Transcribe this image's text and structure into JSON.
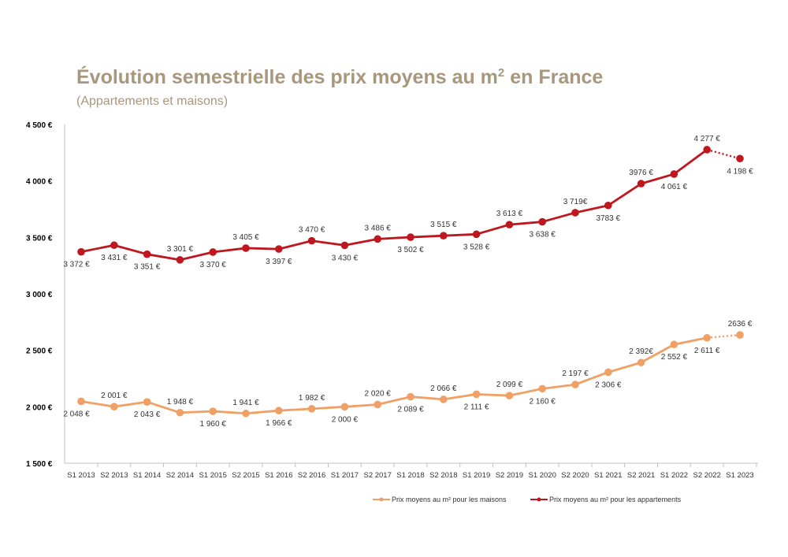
{
  "header": {
    "title_main": "Évolution semestrielle des prix moyens au m",
    "title_sup": "2",
    "title_end": " en France",
    "subtitle": "(Appartements et maisons)"
  },
  "chart_data": {
    "type": "line",
    "categories": [
      "S1 2013",
      "S2 2013",
      "S1 2014",
      "S2 2014",
      "S1 2015",
      "S2 2015",
      "S1 2016",
      "S2 2016",
      "S1 2017",
      "S2 2017",
      "S1 2018",
      "S2 2018",
      "S1 2019",
      "S2 2019",
      "S1 2020",
      "S2 2020",
      "S1 2021",
      "S2 2021",
      "S1 2022",
      "S2 2022",
      "S1 2023"
    ],
    "ylim": [
      1500,
      4500
    ],
    "yticks": [
      1500,
      2000,
      2500,
      3000,
      3500,
      4000,
      4500
    ],
    "ytick_labels": [
      "1 500 €",
      "2 000 €",
      "2 500 €",
      "3 000 €",
      "3 500 €",
      "4 000 €",
      "4 500 €"
    ],
    "dotted_last_segment": true,
    "series": [
      {
        "name": "Prix moyens au m² pour les appartements",
        "color": "#c0171e",
        "values": [
          3372,
          3431,
          3351,
          3301,
          3370,
          3405,
          3397,
          3470,
          3430,
          3486,
          3502,
          3515,
          3528,
          3613,
          3638,
          3719,
          3783,
          3976,
          4061,
          4277,
          4198
        ],
        "labels": [
          "3 372 €",
          "3 431 €",
          "3 351 €",
          "3 301 €",
          "3 370 €",
          "3 405 €",
          "3 397 €",
          "3 470 €",
          "3 430 €",
          "3 486 €",
          "3 502 €",
          "3 515 €",
          "3 528 €",
          "3 613 €",
          "3 638 €",
          "3 719€",
          "3783 €",
          "3976 €",
          "4 061 €",
          "4 277 €",
          "4 198 €"
        ]
      },
      {
        "name": "Prix moyens au m² pour les maisons",
        "color": "#f0a064",
        "values": [
          2048,
          2001,
          2043,
          1948,
          1960,
          1941,
          1966,
          1982,
          2000,
          2020,
          2089,
          2066,
          2111,
          2099,
          2160,
          2197,
          2306,
          2392,
          2552,
          2611,
          2636
        ],
        "labels": [
          "2 048 €",
          "2 001 €",
          "2 043 €",
          "1 948 €",
          "1 960 €",
          "1 941 €",
          "1 966 €",
          "1 982 €",
          "2 000 €",
          "2 020 €",
          "2 089 €",
          "2 066 €",
          "2 111 €",
          "2 099 €",
          "2 160 €",
          "2 197 €",
          "2 306 €",
          "2 392€",
          "2 552 €",
          "2 611 €",
          "2636 €"
        ]
      }
    ],
    "legend_position": "bottom-center"
  }
}
